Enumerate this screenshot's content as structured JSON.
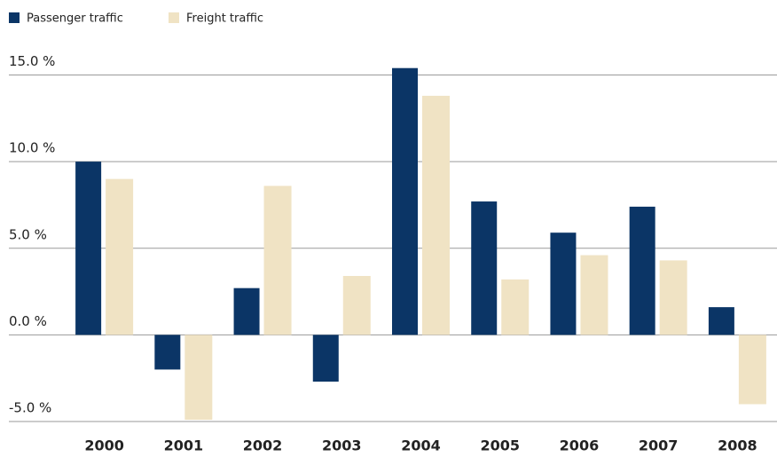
{
  "chart_data": {
    "type": "bar",
    "categories": [
      "2000",
      "2001",
      "2002",
      "2003",
      "2004",
      "2005",
      "2006",
      "2007",
      "2008"
    ],
    "series": [
      {
        "name": "Passenger traffic",
        "color": "#0b3566",
        "values": [
          10.0,
          -2.0,
          2.7,
          -2.7,
          15.4,
          7.7,
          5.9,
          7.4,
          1.6
        ]
      },
      {
        "name": "Freight traffic",
        "color": "#f0e3c4",
        "values": [
          9.0,
          -4.9,
          8.6,
          3.4,
          13.8,
          3.2,
          4.6,
          4.3,
          -4.0
        ]
      }
    ],
    "ylim": [
      -5,
      16
    ],
    "yticks": [
      {
        "value": -5,
        "label": "-5.0 %"
      },
      {
        "value": 0,
        "label": "0.0 %"
      },
      {
        "value": 5,
        "label": "5.0 %"
      },
      {
        "value": 10,
        "label": "10.0 %"
      },
      {
        "value": 15,
        "label": "15.0 %"
      }
    ],
    "grid": true,
    "legend": "top-left"
  }
}
